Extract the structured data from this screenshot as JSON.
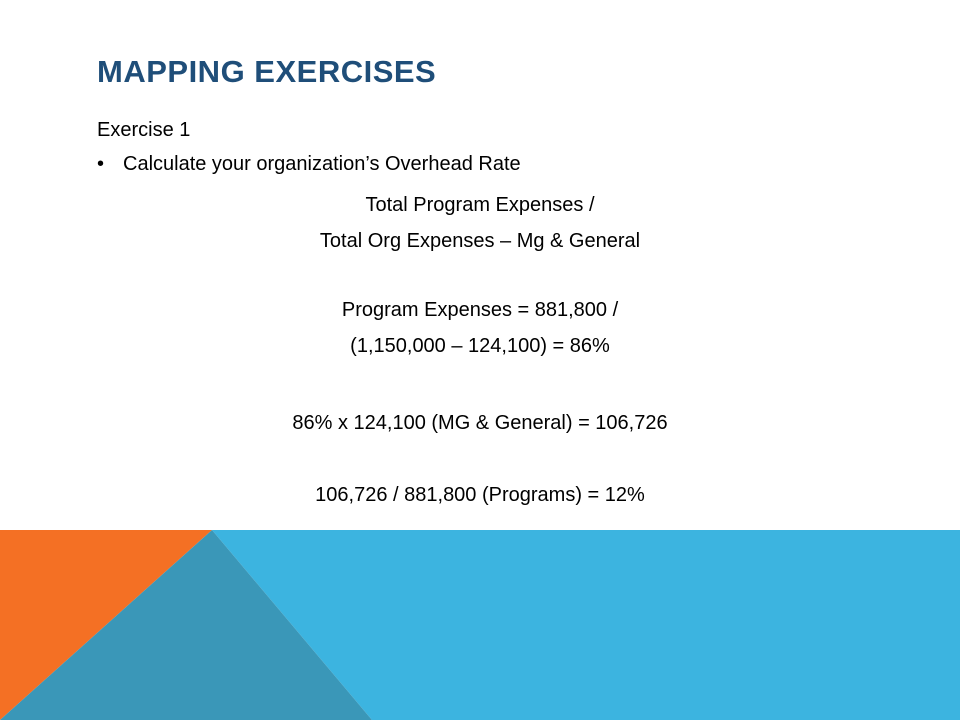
{
  "slide": {
    "title": "MAPPING EXERCISES",
    "subheading": "Exercise 1",
    "bullet": "Calculate your organization’s Overhead Rate",
    "bullet_marker": "•",
    "lines": [
      "Total Program Expenses /",
      "Total Org Expenses – Mg & General",
      "Program Expenses = 881,800 /",
      "(1,150,000 – 124,100) = 86%",
      "86% x 124,100 (MG & General) = 106,726",
      "106,726 / 881,800 (Programs) = 12%"
    ]
  },
  "colors": {
    "title": "#1f4e79",
    "orange": "#f47024",
    "blue": "#3cb4e0",
    "blue_dark": "#3a97b8"
  }
}
